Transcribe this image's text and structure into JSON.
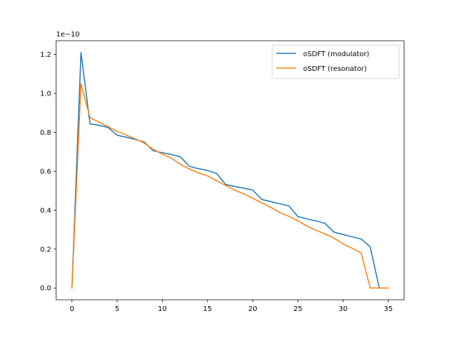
{
  "chart_data": {
    "type": "line",
    "title": "",
    "xlabel": "",
    "ylabel": "",
    "y_offset_label": "1e−10",
    "y_scale": 1e-10,
    "xlim": [
      -1.75,
      36.75
    ],
    "ylim": [
      -0.0605,
      1.2705
    ],
    "x_ticks": [
      0,
      5,
      10,
      15,
      20,
      25,
      30,
      35
    ],
    "x_tick_labels": [
      "0",
      "5",
      "10",
      "15",
      "20",
      "25",
      "30",
      "35"
    ],
    "y_ticks": [
      0,
      0.2,
      0.4,
      0.6,
      0.8,
      1.0,
      1.2
    ],
    "y_tick_labels": [
      "0.0",
      "0.2",
      "0.4",
      "0.6",
      "0.8",
      "1.0",
      "1.2"
    ],
    "grid": false,
    "legend_position": "top-right",
    "x": [
      0,
      1,
      2,
      3,
      4,
      5,
      6,
      7,
      8,
      9,
      10,
      11,
      12,
      13,
      14,
      15,
      16,
      17,
      18,
      19,
      20,
      21,
      22,
      23,
      24,
      25,
      26,
      27,
      28,
      29,
      30,
      31,
      32,
      33,
      34,
      35
    ],
    "series": [
      {
        "name": "oSDFT (modulator)",
        "color": "#1f77b4",
        "values": [
          0.0,
          1.21,
          0.843,
          0.836,
          0.825,
          0.785,
          0.775,
          0.763,
          0.75,
          0.705,
          0.695,
          0.686,
          0.674,
          0.625,
          0.613,
          0.604,
          0.589,
          0.532,
          0.522,
          0.513,
          0.503,
          0.455,
          0.444,
          0.433,
          0.422,
          0.367,
          0.355,
          0.345,
          0.332,
          0.287,
          0.275,
          0.263,
          0.252,
          0.211,
          0.0,
          0.0
        ]
      },
      {
        "name": "oSDFT (resonator)",
        "color": "#ff7f0e",
        "values": [
          0.0,
          1.05,
          0.875,
          0.852,
          0.829,
          0.805,
          0.786,
          0.766,
          0.745,
          0.712,
          0.688,
          0.667,
          0.636,
          0.611,
          0.591,
          0.576,
          0.551,
          0.527,
          0.503,
          0.484,
          0.461,
          0.438,
          0.414,
          0.388,
          0.368,
          0.345,
          0.318,
          0.297,
          0.278,
          0.256,
          0.227,
          0.204,
          0.18,
          0.0,
          0.0,
          0.0
        ]
      }
    ]
  }
}
